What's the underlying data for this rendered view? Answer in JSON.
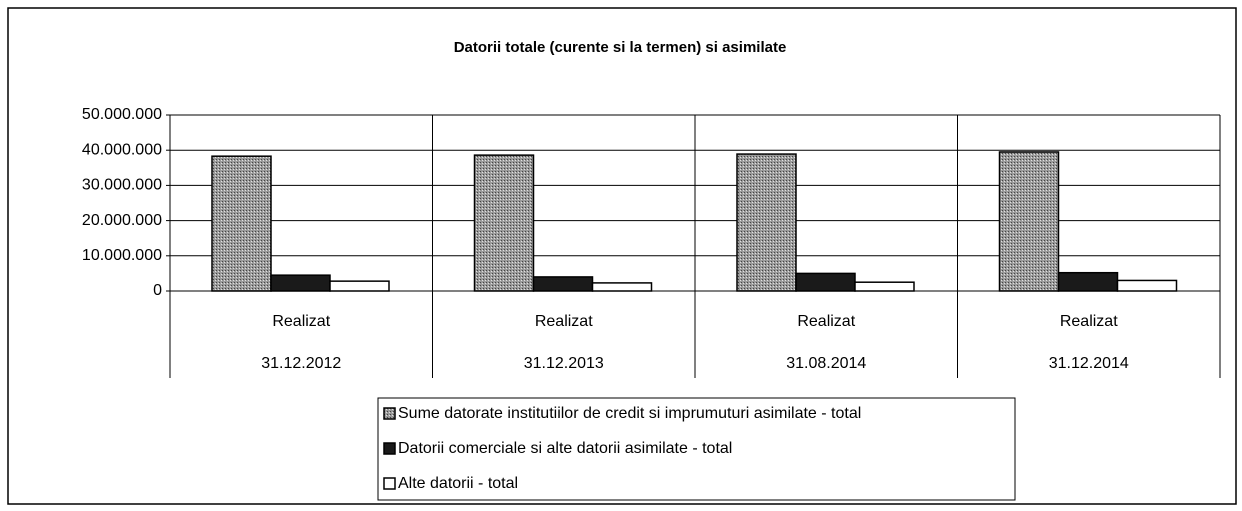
{
  "chart_data": {
    "type": "bar",
    "title": "Datorii totale (curente si la termen) si asimilate",
    "categories": [
      "Realizat",
      "Realizat",
      "Realizat",
      "Realizat"
    ],
    "category_dates": [
      "31.12.2012",
      "31.12.2013",
      "31.08.2014",
      "31.12.2014"
    ],
    "series": [
      {
        "name": "Sume datorate institutiilor de credit si imprumuturi asimilate - total",
        "color": "#8c8c8c",
        "values": [
          38300000,
          38600000,
          38900000,
          39500000
        ]
      },
      {
        "name": "Datorii comerciale si alte datorii asimilate - total",
        "color": "#1a1a1a",
        "values": [
          4500000,
          4000000,
          5000000,
          5200000
        ]
      },
      {
        "name": "Alte datorii - total",
        "color": "#ffffff",
        "values": [
          2800000,
          2300000,
          2500000,
          3000000
        ]
      }
    ],
    "ylim": [
      0,
      50000000
    ],
    "yticks": [
      0,
      {
        "value": 10000000,
        "label": "10.000.000"
      },
      {
        "value": 20000000,
        "label": "20.000.000"
      },
      {
        "value": 30000000,
        "label": "30.000.000"
      },
      {
        "value": 40000000,
        "label": "40.000.000"
      },
      {
        "value": 50000000,
        "label": "50.000.000"
      }
    ],
    "grid": true
  }
}
